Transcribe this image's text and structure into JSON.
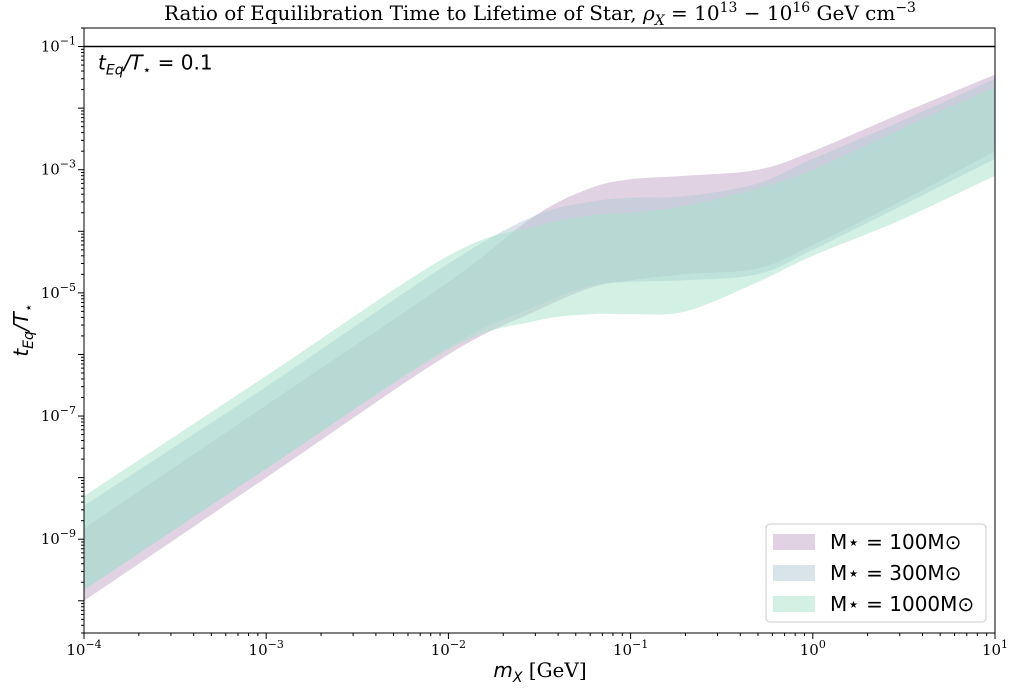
{
  "chart_data": {
    "type": "area",
    "title": "Ratio of Equilibration Time to Lifetime of Star, ρX = 10¹³ − 10¹⁶ GeV cm⁻³",
    "xlabel": "mX [GeV]",
    "ylabel": "tEq/T⋆",
    "xscale": "log",
    "yscale": "log",
    "xlim": [
      0.0001,
      10
    ],
    "ylim": [
      3e-11,
      0.2
    ],
    "xticks": [
      {
        "value": 0.0001,
        "base": "10",
        "exp": "−4"
      },
      {
        "value": 0.001,
        "base": "10",
        "exp": "−3"
      },
      {
        "value": 0.01,
        "base": "10",
        "exp": "−2"
      },
      {
        "value": 0.1,
        "base": "10",
        "exp": "−1"
      },
      {
        "value": 1,
        "base": "10",
        "exp": "0"
      },
      {
        "value": 10,
        "base": "10",
        "exp": "1"
      }
    ],
    "yticks": [
      {
        "value": 1e-09,
        "base": "10",
        "exp": "−9"
      },
      {
        "value": 1e-07,
        "base": "10",
        "exp": "−7"
      },
      {
        "value": 1e-05,
        "base": "10",
        "exp": "−5"
      },
      {
        "value": 0.001,
        "base": "10",
        "exp": "−3"
      },
      {
        "value": 0.1,
        "base": "10",
        "exp": "−1"
      }
    ],
    "grid": false,
    "legend_position": "lower-right",
    "reference_line": {
      "y": 0.1,
      "label": "tEq/T⋆ = 0.1",
      "color": "#000000"
    },
    "series": [
      {
        "name": "M⋆ = 100M⊙",
        "color": "#c2a5c5",
        "x": [
          0.0001,
          0.001,
          0.01,
          0.03,
          0.06,
          0.1,
          0.2,
          0.5,
          1,
          3,
          10
        ],
        "lower": [
          1e-10,
          1e-08,
          1e-06,
          5e-06,
          1.2e-05,
          1.6e-05,
          2e-05,
          2.5e-05,
          6e-05,
          0.0003,
          0.002
        ],
        "upper": [
          1.5e-09,
          1.5e-07,
          1.5e-05,
          0.00018,
          0.0005,
          0.0007,
          0.0008,
          0.001,
          0.002,
          0.008,
          0.035
        ]
      },
      {
        "name": "M⋆ = 300M⊙",
        "color": "#b3c7d6",
        "x": [
          0.0001,
          0.001,
          0.01,
          0.03,
          0.06,
          0.1,
          0.2,
          0.5,
          1,
          3,
          10
        ],
        "lower": [
          1.5e-10,
          1.4e-08,
          1.3e-06,
          6e-06,
          1.3e-05,
          1.5e-05,
          1.6e-05,
          2e-05,
          5e-05,
          0.00025,
          0.0015
        ],
        "upper": [
          3.5e-09,
          3e-07,
          3e-05,
          0.00018,
          0.0003,
          0.00035,
          0.00037,
          0.0006,
          0.0015,
          0.006,
          0.03
        ]
      },
      {
        "name": "M⋆ = 1000M⊙",
        "color": "#a6e3c9",
        "x": [
          0.0001,
          0.001,
          0.01,
          0.03,
          0.06,
          0.1,
          0.2,
          0.5,
          1,
          3,
          10
        ],
        "lower": [
          1.5e-10,
          1.4e-08,
          1.2e-06,
          3.5e-06,
          4.5e-06,
          4.5e-06,
          5e-06,
          1.5e-05,
          4e-05,
          0.00015,
          0.0008
        ],
        "upper": [
          5e-09,
          4.5e-07,
          4e-05,
          0.00012,
          0.00018,
          0.0002,
          0.00026,
          0.0005,
          0.001,
          0.0045,
          0.022
        ]
      }
    ]
  }
}
